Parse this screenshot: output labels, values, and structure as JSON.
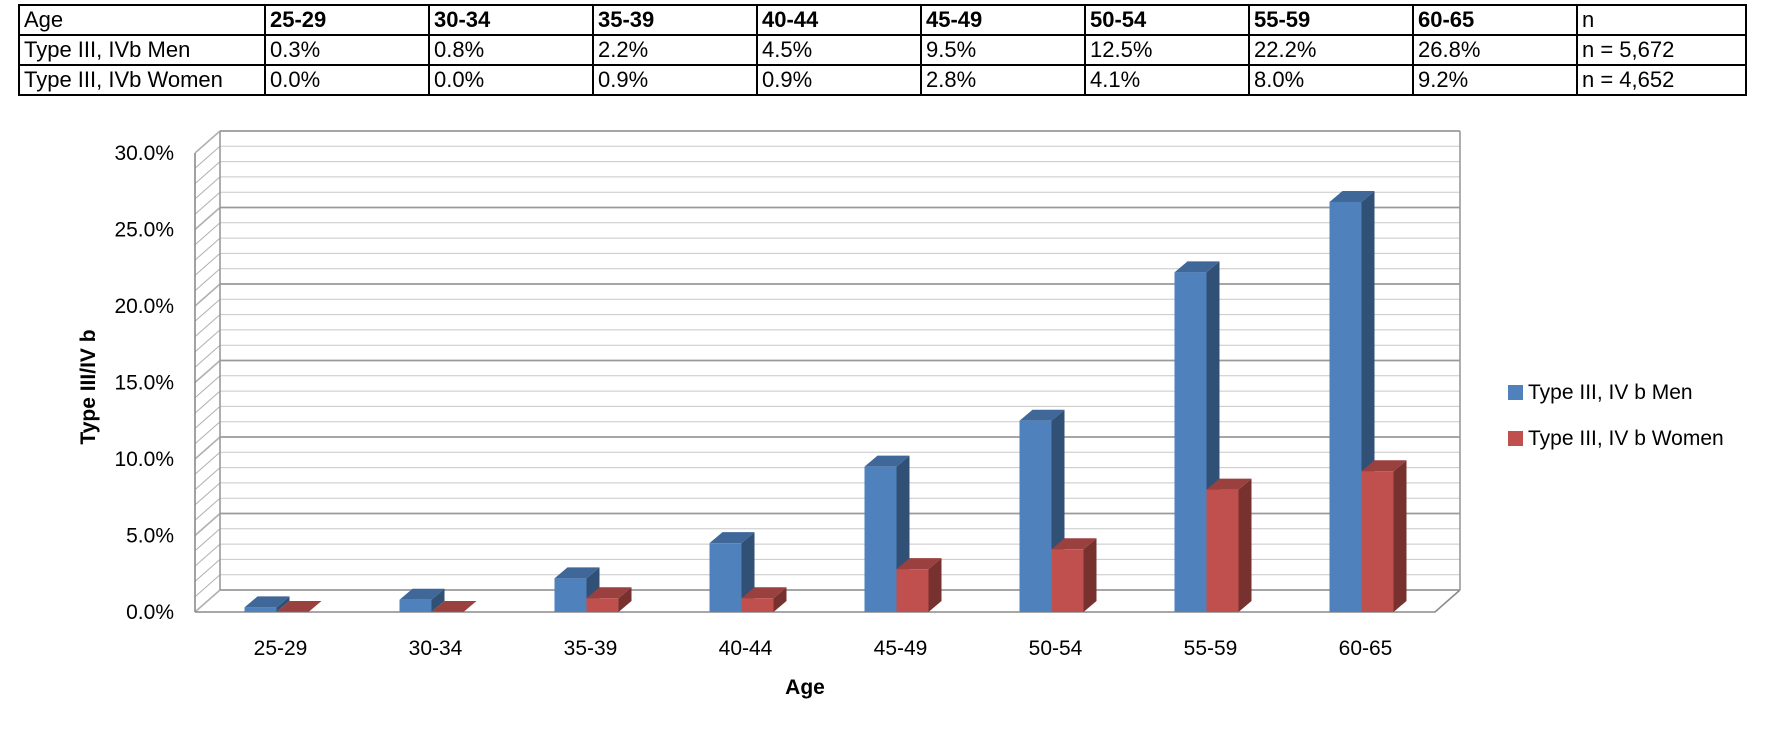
{
  "table": {
    "header": [
      "Age",
      "25-29",
      "30-34",
      "35-39",
      "40-44",
      "45-49",
      "50-54",
      "55-59",
      "60-65",
      "n"
    ],
    "rows": [
      [
        "Type III, IVb Men",
        "0.3%",
        "0.8%",
        "2.2%",
        "4.5%",
        "9.5%",
        "12.5%",
        "22.2%",
        "26.8%",
        "n = 5,672"
      ],
      [
        "Type III, IVb Women",
        "0.0%",
        "0.0%",
        "0.9%",
        "0.9%",
        "2.8%",
        "4.1%",
        "8.0%",
        "9.2%",
        "n = 4,652"
      ]
    ]
  },
  "chart_data": {
    "type": "bar",
    "style": "3d-clustered",
    "categories": [
      "25-29",
      "30-34",
      "35-39",
      "40-44",
      "45-49",
      "50-54",
      "55-59",
      "60-65"
    ],
    "series": [
      {
        "name": "Type III, IV b Men",
        "values": [
          0.3,
          0.8,
          2.2,
          4.5,
          9.5,
          12.5,
          22.2,
          26.8
        ],
        "color": "#4f81bd"
      },
      {
        "name": "Type III, IV b Women",
        "values": [
          0.0,
          0.0,
          0.9,
          0.9,
          2.8,
          4.1,
          8.0,
          9.2
        ],
        "color": "#c0504d"
      }
    ],
    "xlabel": "Age",
    "ylabel": "Type III/IV b",
    "ylim": [
      0,
      30
    ],
    "yticks": [
      "0.0%",
      "5.0%",
      "10.0%",
      "15.0%",
      "20.0%",
      "25.0%",
      "30.0%"
    ],
    "grid": true,
    "legend": "right"
  }
}
